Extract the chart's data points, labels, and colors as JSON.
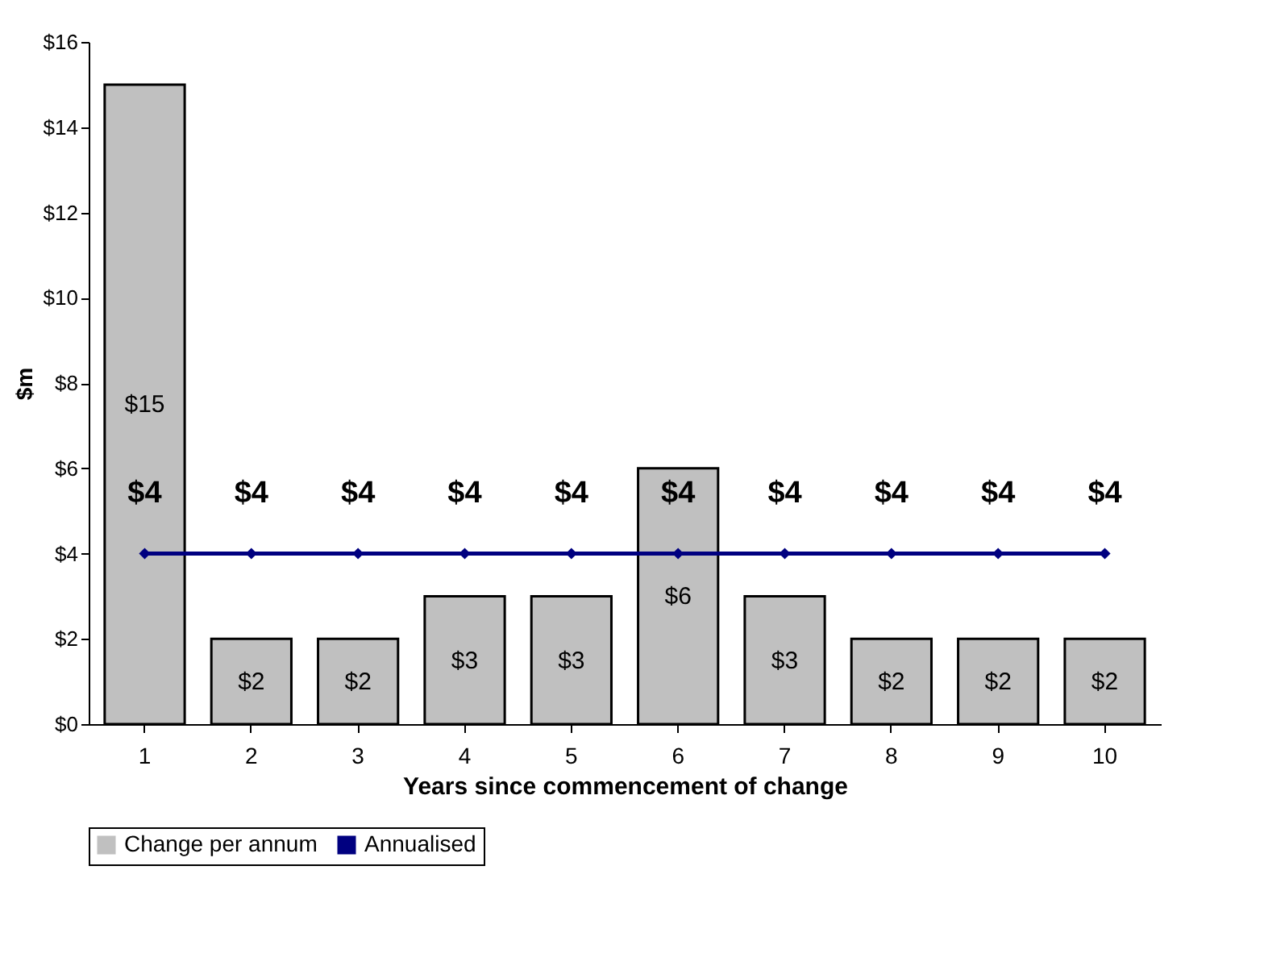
{
  "chart_data": {
    "type": "bar",
    "xlabel": "Years since commencement of change",
    "ylabel": "$m",
    "categories": [
      "1",
      "2",
      "3",
      "4",
      "5",
      "6",
      "7",
      "8",
      "9",
      "10"
    ],
    "series": [
      {
        "name": "Change per annum",
        "color": "#c0c0c0",
        "values": [
          15,
          2,
          2,
          3,
          3,
          6,
          3,
          2,
          2,
          2
        ],
        "value_labels": [
          "$15",
          "$2",
          "$2",
          "$3",
          "$3",
          "$6",
          "$3",
          "$2",
          "$2",
          "$2"
        ]
      },
      {
        "name": "Annualised",
        "type": "line",
        "color": "#000080",
        "marker": "diamond",
        "values": [
          4,
          4,
          4,
          4,
          4,
          4,
          4,
          4,
          4,
          4
        ],
        "value_labels": [
          "$4",
          "$4",
          "$4",
          "$4",
          "$4",
          "$4",
          "$4",
          "$4",
          "$4",
          "$4"
        ]
      }
    ],
    "ylim": [
      0,
      16
    ],
    "yticks": [
      {
        "value": 0,
        "label": "$0"
      },
      {
        "value": 2,
        "label": "$2"
      },
      {
        "value": 4,
        "label": "$4"
      },
      {
        "value": 6,
        "label": "$6"
      },
      {
        "value": 8,
        "label": "$8"
      },
      {
        "value": 10,
        "label": "$10"
      },
      {
        "value": 12,
        "label": "$12"
      },
      {
        "value": 14,
        "label": "$14"
      },
      {
        "value": 16,
        "label": "$16"
      }
    ],
    "legend": "bottom"
  }
}
